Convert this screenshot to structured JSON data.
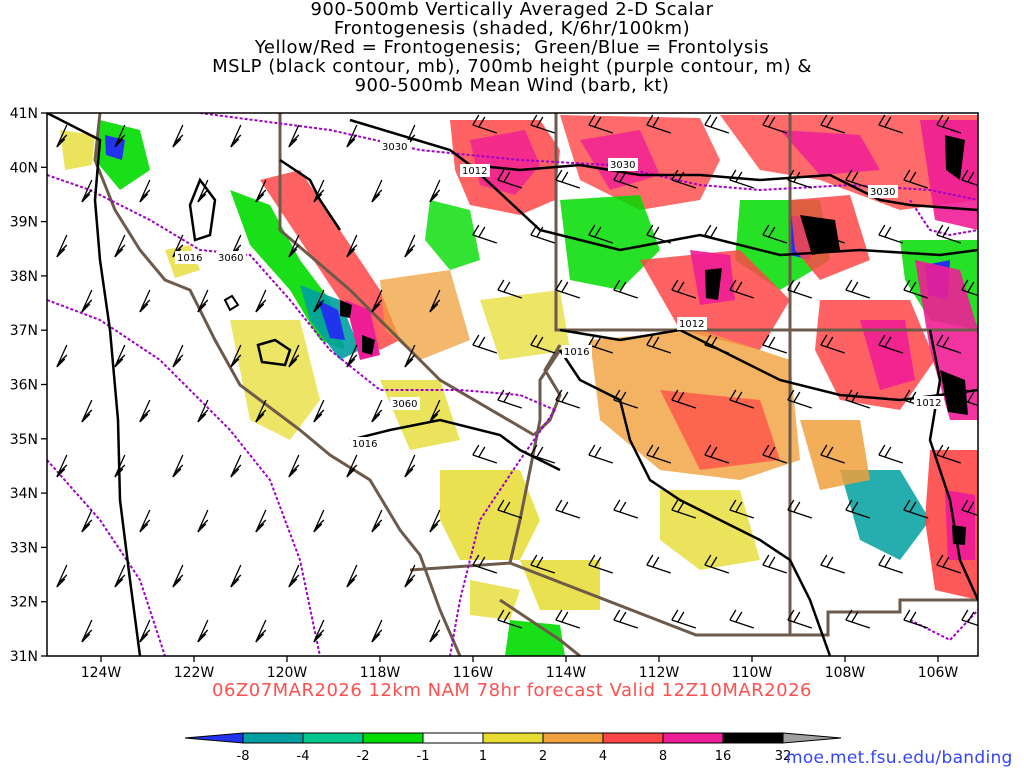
{
  "title": {
    "lines": [
      "900-500mb Vertically Averaged 2-D Scalar",
      "Frontogenesis (shaded, K/6hr/100km)",
      "Yellow/Red = Frontogenesis;  Green/Blue = Frontolysis",
      "MSLP (black contour, mb), 700mb height (purple contour, m) &",
      "900-500mb Mean Wind (barb, kt)"
    ]
  },
  "map": {
    "lat_labels": [
      "41N",
      "40N",
      "39N",
      "38N",
      "37N",
      "36N",
      "35N",
      "34N",
      "33N",
      "32N",
      "31N"
    ],
    "lon_labels": [
      "124W",
      "122W",
      "120W",
      "118W",
      "116W",
      "114W",
      "112W",
      "110W",
      "108W",
      "106W"
    ],
    "mslp_contour_labels": [
      "1012",
      "1016",
      "1016",
      "1016",
      "1012",
      "1012"
    ],
    "height_contour_labels": [
      "3030",
      "3030",
      "3030",
      "3060",
      "3060"
    ]
  },
  "footer": {
    "run_text": "06Z07MAR2026 12km NAM 78hr forecast Valid 12Z10MAR2026",
    "source_url": "moe.met.fsu.edu/banding"
  },
  "colorbar": {
    "labels": [
      "-8",
      "-4",
      "-2",
      "-1",
      "1",
      "2",
      "4",
      "8",
      "16",
      "32"
    ],
    "colors": [
      "#2233ee",
      "#00a0a0",
      "#00c88c",
      "#00dc00",
      "#ffffff",
      "#e6dc32",
      "#f0a03c",
      "#ff4646",
      "#f01e96",
      "#000000",
      "#a0a0a0"
    ]
  },
  "colors": {
    "mslp": "#000000",
    "height": "#a000c8",
    "borders": "#6e5a4b",
    "footer_text": "#ff5050",
    "url_text": "#3344ff"
  }
}
